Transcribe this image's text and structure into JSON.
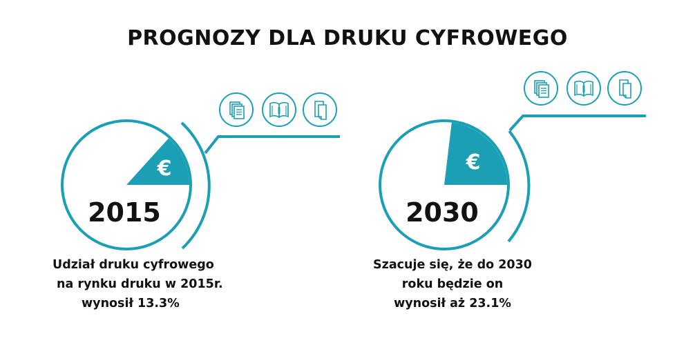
{
  "title": "PROGNOZY DLA DRUKU CYFROWEGO",
  "colors": {
    "accent": "#1a9fb5",
    "text": "#111111",
    "background": "#ffffff"
  },
  "chart_data": [
    {
      "type": "pie",
      "label": "2015",
      "values": [
        13.3,
        86.7
      ],
      "slice_symbol": "€",
      "icons": [
        "documents-icon",
        "open-book-icon",
        "folded-page-icon"
      ],
      "caption": [
        "Udział druku cyfrowego",
        "na rynku druku w 2015r.",
        "wynosił 13.3%"
      ]
    },
    {
      "type": "pie",
      "label": "2030",
      "values": [
        23.1,
        76.9
      ],
      "slice_symbol": "€",
      "icons": [
        "documents-icon",
        "open-book-icon",
        "folded-page-icon"
      ],
      "caption": [
        "Szacuje się, że do 2030",
        "roku będzie on",
        "wynosił aż 23.1%"
      ]
    }
  ]
}
